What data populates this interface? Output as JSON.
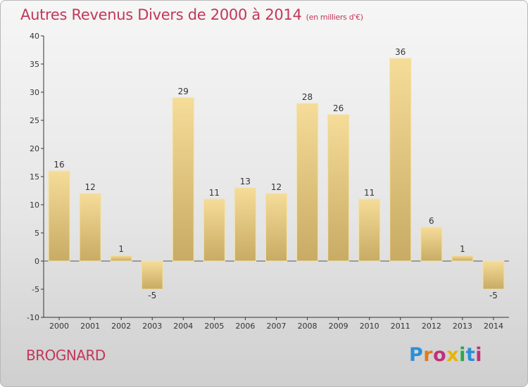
{
  "header": {
    "title": "Autres Revenus Divers de 2000 à 2014",
    "unit": "(en milliers d'€)"
  },
  "footer": {
    "place": "BROGNARD",
    "logo_text": "Proxiti",
    "logo_colors": [
      "#2a8fd8",
      "#e07b1a",
      "#c0307a",
      "#e8b400",
      "#2aa84a",
      "#2a8fd8",
      "#c0307a"
    ]
  },
  "colors": {
    "title": "#c2375a",
    "bar_fill_start": "#f5dc98",
    "bar_fill_end": "#c8ab64",
    "bar_stroke": "#f3e3a8"
  },
  "chart_data": {
    "type": "bar",
    "categories": [
      "2000",
      "2001",
      "2002",
      "2003",
      "2004",
      "2005",
      "2006",
      "2007",
      "2008",
      "2009",
      "2010",
      "2011",
      "2012",
      "2013",
      "2014"
    ],
    "values": [
      16,
      12,
      1,
      -5,
      29,
      11,
      13,
      12,
      28,
      26,
      11,
      36,
      6,
      1,
      -5
    ],
    "title": "Autres Revenus Divers de 2000 à 2014",
    "ylim": [
      -10,
      40
    ],
    "yticks": [
      -10,
      -5,
      0,
      5,
      10,
      15,
      20,
      25,
      30,
      35,
      40
    ],
    "grid": false,
    "legend": "none"
  }
}
